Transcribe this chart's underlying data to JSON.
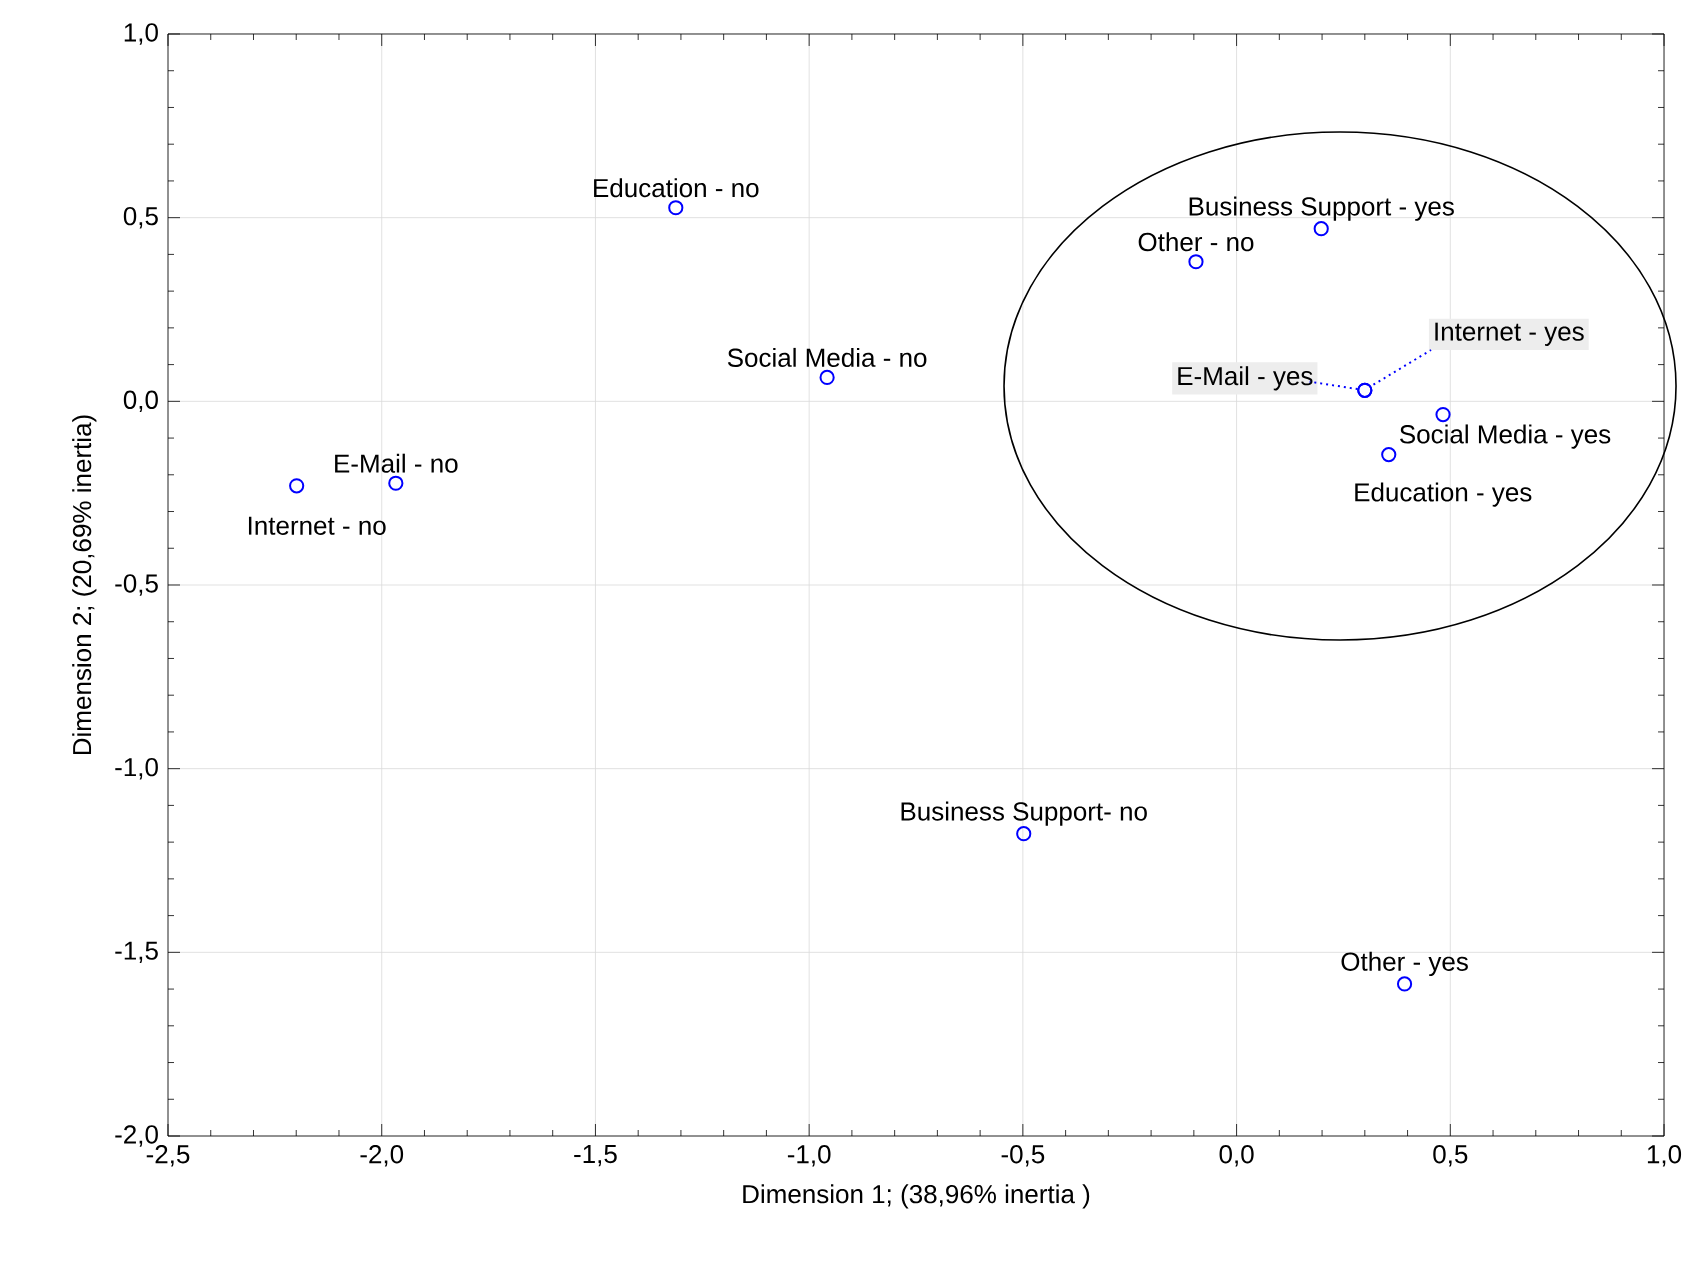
{
  "chart_data": {
    "type": "scatter",
    "xlabel": "Dimension 1; (38,96% inertia )",
    "ylabel": "Dimension 2;  (20,69% inertia)",
    "series": [
      {
        "color": "#0000ff",
        "x": [
          -1.312,
          -0.958,
          -1.967,
          -2.199,
          -0.498,
          -0.095,
          0.198,
          0.3,
          0.3,
          0.483,
          0.356,
          0.393
        ],
        "values": [
          0.527,
          0.065,
          -0.223,
          -0.23,
          -1.177,
          0.38,
          0.47,
          0.03,
          0.03,
          -0.036,
          -0.145,
          -1.586
        ]
      }
    ],
    "marker": "circle",
    "grid": true,
    "xlim": [
      -2.5,
      1.0
    ],
    "ylim": [
      -2.0,
      1.0
    ],
    "xticks": [
      {
        "value": -2.5,
        "label": "-2,5"
      },
      {
        "value": -2.0,
        "label": "-2,0"
      },
      {
        "value": -1.5,
        "label": "-1,5"
      },
      {
        "value": -1.0,
        "label": "-1,0"
      },
      {
        "value": -0.5,
        "label": "-0,5"
      },
      {
        "value": 0.0,
        "label": "0,0"
      },
      {
        "value": 0.5,
        "label": "0,5"
      },
      {
        "value": 1.0,
        "label": "1,0"
      }
    ],
    "yticks": [
      {
        "value": -2.0,
        "label": "-2,0"
      },
      {
        "value": -1.5,
        "label": "-1,5"
      },
      {
        "value": -1.0,
        "label": "-1,0"
      },
      {
        "value": -0.5,
        "label": "-0,5"
      },
      {
        "value": 0.0,
        "label": "0,0"
      },
      {
        "value": 0.5,
        "label": "0,5"
      },
      {
        "value": 1.0,
        "label": "1,0"
      }
    ],
    "annotations": [
      {
        "text": "Education - no",
        "x": -1.312,
        "y": 0.527
      },
      {
        "text": "Social Media - no",
        "x": -0.958,
        "y": 0.065
      },
      {
        "text": "E-Mail - no",
        "x": -1.967,
        "y": -0.223
      },
      {
        "text": "Internet - no",
        "x": -2.199,
        "y": -0.23
      },
      {
        "text": "Business Support- no",
        "x": -0.498,
        "y": -1.177
      },
      {
        "text": "Other - no",
        "x": -0.095,
        "y": 0.38
      },
      {
        "text": "Business Support - yes",
        "x": 0.198,
        "y": 0.47
      },
      {
        "text": "E-Mail - yes",
        "x": 0.3,
        "y": 0.03
      },
      {
        "text": "Internet - yes",
        "x": 0.3,
        "y": 0.03
      },
      {
        "text": "Social Media - yes",
        "x": 0.483,
        "y": -0.036
      },
      {
        "text": "Education - yes",
        "x": 0.356,
        "y": -0.145
      },
      {
        "text": "Other - yes",
        "x": 0.393,
        "y": -1.586
      }
    ]
  }
}
